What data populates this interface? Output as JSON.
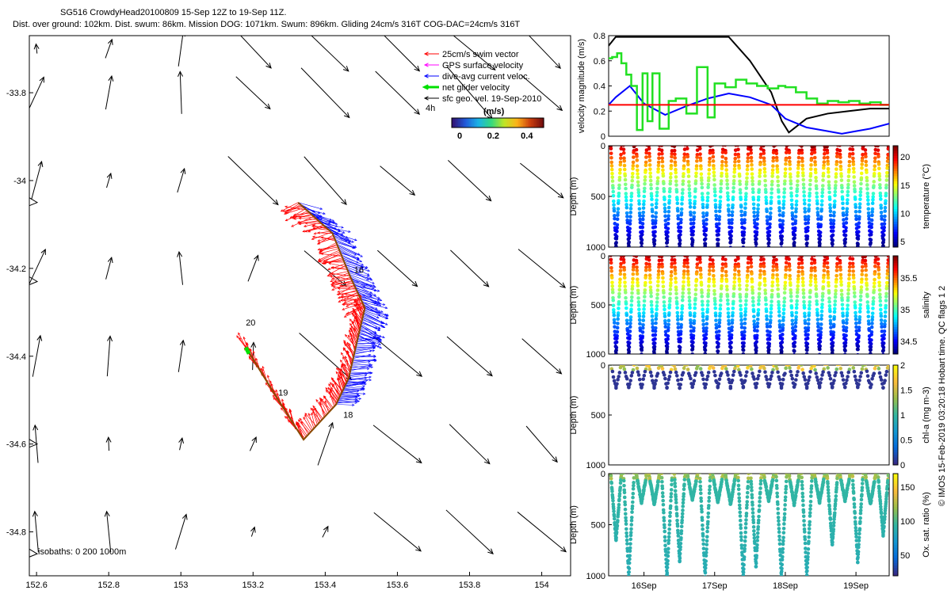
{
  "header": {
    "line1": "SG516 CrowdyHead20100809 15-Sep 12Z to 19-Sep 11Z.",
    "line2": "Dist. over ground: 102km. Dist. swum: 86km. Mission DOG: 1071km. Swum: 896km. Gliding 24cm/s 316T COG-DAC=24cm/s 316T"
  },
  "credit": "© IMOS 15-Feb-2019 03:20:18 Hobart time. QC flags 1  2",
  "colors": {
    "swim": "#ff0000",
    "gps": "#ff00ff",
    "dac": "#0000ff",
    "net": "#00e000",
    "geo": "#000000",
    "threshold": "#ff0000"
  },
  "chart_data": [
    {
      "type": "map",
      "xlim": [
        152.58,
        154.08
      ],
      "ylim": [
        -34.9,
        -33.67
      ],
      "xticks": [
        "152.6",
        "152.8",
        "153",
        "153.2",
        "153.4",
        "153.6",
        "153.8",
        "154"
      ],
      "xtick_values": [
        152.6,
        152.8,
        153.0,
        153.2,
        153.4,
        153.6,
        153.8,
        154.0
      ],
      "yticks": [
        "-33.8",
        "-34",
        "-34.2",
        "-34.4",
        "-34.6",
        "-34.8"
      ],
      "ytick_values": [
        -33.8,
        -34.0,
        -34.2,
        -34.4,
        -34.6,
        -34.8
      ],
      "legend": [
        {
          "label": "25cm/s swim vector",
          "color": "#ff0000"
        },
        {
          "label": "GPS surface velocity",
          "color": "#ff00ff"
        },
        {
          "label": "dive-avg current veloc.",
          "color": "#0000ff"
        },
        {
          "label": "net glider velocity",
          "color": "#00e000"
        },
        {
          "label": "sfc geo. vel. 19-Sep-2010",
          "color": "#000000"
        }
      ],
      "legend_placement": "top-right",
      "interval_label": "4h",
      "colorbar": {
        "label": "(m/s)",
        "ticks": [
          "0",
          "0.2",
          "0.4"
        ],
        "tick_values": [
          0,
          0.2,
          0.4
        ],
        "range": [
          0,
          0.5
        ]
      },
      "isobaths_label": "isobaths: 0   200  1000m",
      "day_labels": [
        {
          "text": "16",
          "lon": 153.48,
          "lat": -34.21
        },
        {
          "text": "20",
          "lon": 153.18,
          "lat": -34.33
        },
        {
          "text": "19",
          "lon": 153.27,
          "lat": -34.49
        },
        {
          "text": "18",
          "lon": 153.45,
          "lat": -34.54
        }
      ],
      "track": [
        [
          153.325,
          -34.05
        ],
        [
          153.42,
          -34.12
        ],
        [
          153.47,
          -34.22
        ],
        [
          153.51,
          -34.29
        ],
        [
          153.49,
          -34.36
        ],
        [
          153.465,
          -34.45
        ],
        [
          153.43,
          -34.51
        ],
        [
          153.34,
          -34.59
        ],
        [
          153.27,
          -34.5
        ],
        [
          153.18,
          -34.38
        ]
      ],
      "geo_vectors_grid": {
        "lon": [
          152.6,
          152.8,
          153.0,
          153.2,
          153.4,
          153.6,
          153.8,
          154.0
        ],
        "lat": [
          -33.7,
          -33.8,
          -34.0,
          -34.2,
          -34.4,
          -34.6,
          -34.8
        ]
      }
    },
    {
      "type": "line",
      "ylabel": "velocity magnitude (m/s)",
      "ylim": [
        0,
        0.8
      ],
      "yticks": [
        "0",
        "0.2",
        "0.4",
        "0.6",
        "0.8"
      ],
      "ytick_values": [
        0,
        0.2,
        0.4,
        0.6,
        0.8
      ],
      "xlim": [
        15.5,
        19.47
      ],
      "threshold": 0.25,
      "series": [
        {
          "color": "#000000",
          "x": [
            15.5,
            15.6,
            16.0,
            16.5,
            17.0,
            17.2,
            17.5,
            17.8,
            17.95,
            18.05,
            18.3,
            18.6,
            18.9,
            19.2,
            19.47
          ],
          "y": [
            0.72,
            0.79,
            0.79,
            0.79,
            0.79,
            0.79,
            0.6,
            0.35,
            0.12,
            0.03,
            0.14,
            0.18,
            0.2,
            0.22,
            0.22
          ]
        },
        {
          "color": "#0000ff",
          "x": [
            15.5,
            15.6,
            15.8,
            16.0,
            16.3,
            16.6,
            16.9,
            17.2,
            17.5,
            17.8,
            18.0,
            18.3,
            18.6,
            18.8,
            19.0,
            19.2,
            19.47
          ],
          "y": [
            0.25,
            0.31,
            0.4,
            0.26,
            0.17,
            0.24,
            0.3,
            0.34,
            0.31,
            0.25,
            0.14,
            0.07,
            0.04,
            0.02,
            0.04,
            0.06,
            0.1
          ]
        },
        {
          "color": "#22e022",
          "x": [
            15.5,
            15.55,
            15.55,
            15.62,
            15.62,
            15.68,
            15.68,
            15.75,
            15.75,
            15.82,
            15.82,
            15.9,
            15.9,
            15.98,
            15.98,
            16.05,
            16.05,
            16.12,
            16.12,
            16.22,
            16.22,
            16.35,
            16.35,
            16.45,
            16.45,
            16.6,
            16.6,
            16.75,
            16.75,
            16.9,
            16.9,
            17.0,
            17.0,
            17.15,
            17.15,
            17.3,
            17.3,
            17.45,
            17.45,
            17.6,
            17.6,
            17.75,
            17.75,
            17.9,
            17.9,
            18.0,
            18.0,
            18.15,
            18.15,
            18.3,
            18.3,
            18.45,
            18.45,
            18.6,
            18.6,
            18.75,
            18.75,
            18.9,
            18.9,
            19.05,
            19.05,
            19.2,
            19.2,
            19.35,
            19.35,
            19.47
          ],
          "y": [
            0.62,
            0.62,
            0.63,
            0.63,
            0.66,
            0.66,
            0.58,
            0.58,
            0.49,
            0.49,
            0.4,
            0.4,
            0.05,
            0.05,
            0.5,
            0.5,
            0.12,
            0.12,
            0.5,
            0.5,
            0.06,
            0.06,
            0.28,
            0.28,
            0.3,
            0.3,
            0.18,
            0.18,
            0.55,
            0.55,
            0.15,
            0.15,
            0.42,
            0.42,
            0.39,
            0.39,
            0.45,
            0.45,
            0.42,
            0.42,
            0.4,
            0.4,
            0.38,
            0.38,
            0.4,
            0.4,
            0.39,
            0.39,
            0.35,
            0.35,
            0.3,
            0.3,
            0.26,
            0.26,
            0.28,
            0.28,
            0.27,
            0.27,
            0.28,
            0.28,
            0.26,
            0.26,
            0.27,
            0.27,
            0.25,
            0.25
          ]
        }
      ]
    },
    {
      "type": "scatter",
      "variable": "temperature",
      "ylabel": "Depth (m)",
      "cbar_label": "temperature (°C)",
      "ylim": [
        0,
        1000
      ],
      "yticks": [
        "0",
        "500",
        "1000"
      ],
      "ytick_values": [
        0,
        500,
        1000
      ],
      "cbar_ticks": [
        "5",
        "10",
        "15",
        "20"
      ],
      "cbar_tick_values": [
        5,
        10,
        15,
        20
      ],
      "crange": [
        4,
        22
      ],
      "profile": "temp"
    },
    {
      "type": "scatter",
      "variable": "salinity",
      "ylabel": "Depth (m)",
      "cbar_label": "salinity",
      "ylim": [
        0,
        1000
      ],
      "yticks": [
        "0",
        "500",
        "1000"
      ],
      "ytick_values": [
        0,
        500,
        1000
      ],
      "cbar_ticks": [
        "34.5",
        "35",
        "35.5"
      ],
      "cbar_tick_values": [
        34.5,
        35.0,
        35.5
      ],
      "crange": [
        34.3,
        35.85
      ],
      "profile": "sal"
    },
    {
      "type": "scatter",
      "variable": "chl-a",
      "ylabel": "Depth (m)",
      "cbar_label": "chl-a (mg m-3)",
      "ylim": [
        0,
        1000
      ],
      "yticks": [
        "0",
        "500",
        "1000"
      ],
      "ytick_values": [
        0,
        500,
        1000
      ],
      "cbar_ticks": [
        "0",
        "0.5",
        "1",
        "1.5",
        "2"
      ],
      "cbar_tick_values": [
        0,
        0.5,
        1.0,
        1.5,
        2.0
      ],
      "crange": [
        0,
        2
      ],
      "profile": "chl"
    },
    {
      "type": "scatter",
      "variable": "oxygen",
      "ylabel": "Depth (m)",
      "cbar_label": "Ox. sat. ratio (%)",
      "ylim": [
        0,
        1000
      ],
      "yticks": [
        "0",
        "500",
        "1000"
      ],
      "ytick_values": [
        0,
        500,
        1000
      ],
      "cbar_ticks": [
        "50",
        "100",
        "150"
      ],
      "cbar_tick_values": [
        50,
        100,
        150
      ],
      "crange": [
        20,
        170
      ],
      "profile": "oxy",
      "xticks": [
        "16Sep",
        "17Sep",
        "18Sep",
        "19Sep"
      ],
      "xtick_values": [
        16,
        17,
        18,
        19
      ]
    }
  ]
}
